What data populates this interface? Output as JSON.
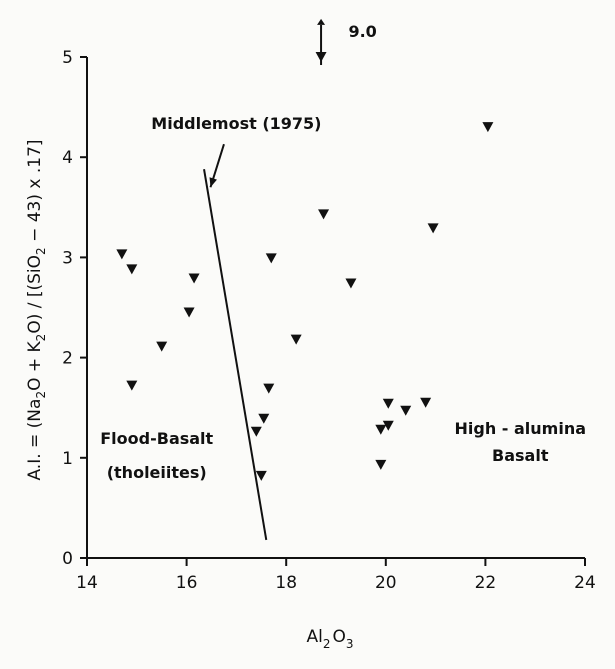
{
  "chart_data": {
    "type": "scatter",
    "title": "",
    "xlabel": "Al₂O₃",
    "xlabel_parts": {
      "base": "Al",
      "sub1": "2",
      "mid": "O",
      "sub2": "3"
    },
    "ylabel": "A.I. = (Na₂O + K₂O) / [(SiO₂ − 43) x .17]",
    "ylabel_parts": {
      "a": "A.I. = (Na",
      "s1": "2",
      "b": "O + K",
      "s2": "2",
      "c": "O) / [(SiO",
      "s3": "2",
      "d": " − 43) x .17]"
    },
    "xlim": [
      14,
      24
    ],
    "ylim": [
      0,
      5
    ],
    "xticks": [
      14,
      16,
      18,
      20,
      22,
      24
    ],
    "yticks": [
      0,
      1,
      2,
      3,
      4,
      5
    ],
    "xtick_labels": [
      "14",
      "16",
      "18",
      "20",
      "22",
      "24"
    ],
    "ytick_labels": [
      "0",
      "1",
      "2",
      "3",
      "4",
      "5"
    ],
    "marker": "triangle-down",
    "series": [
      {
        "points": [
          {
            "x": 14.7,
            "y": 3.03
          },
          {
            "x": 14.9,
            "y": 2.88
          },
          {
            "x": 14.9,
            "y": 1.72
          },
          {
            "x": 15.5,
            "y": 2.11
          },
          {
            "x": 16.05,
            "y": 2.45
          },
          {
            "x": 16.15,
            "y": 2.79
          },
          {
            "x": 17.4,
            "y": 1.26
          },
          {
            "x": 17.5,
            "y": 0.82
          },
          {
            "x": 17.55,
            "y": 1.39
          },
          {
            "x": 17.65,
            "y": 1.69
          },
          {
            "x": 17.7,
            "y": 2.99
          },
          {
            "x": 18.2,
            "y": 2.18
          },
          {
            "x": 18.7,
            "y": 5.0
          },
          {
            "x": 18.75,
            "y": 3.43
          },
          {
            "x": 19.3,
            "y": 2.74
          },
          {
            "x": 19.9,
            "y": 0.93
          },
          {
            "x": 19.9,
            "y": 1.28
          },
          {
            "x": 20.05,
            "y": 1.32
          },
          {
            "x": 20.05,
            "y": 1.54
          },
          {
            "x": 20.4,
            "y": 1.47
          },
          {
            "x": 20.8,
            "y": 1.55
          },
          {
            "x": 20.95,
            "y": 3.29
          },
          {
            "x": 22.05,
            "y": 4.3
          }
        ]
      }
    ],
    "divider_line": {
      "x1": 16.35,
      "y1": 3.88,
      "x2": 17.6,
      "y2": 0.18
    },
    "annotations": [
      {
        "text": "Middlemost (1975)",
        "x": 17.0,
        "y": 4.28
      },
      {
        "text": "9.0",
        "x": 19.25,
        "y": 5.2
      },
      {
        "text": "Flood-Basalt",
        "x": 15.4,
        "y": 1.14
      },
      {
        "text": "(tholeiites)",
        "x": 15.4,
        "y": 0.8
      },
      {
        "text": "High - alumina",
        "x": 22.7,
        "y": 1.24
      },
      {
        "text": "Basalt",
        "x": 22.7,
        "y": 0.97
      }
    ]
  }
}
